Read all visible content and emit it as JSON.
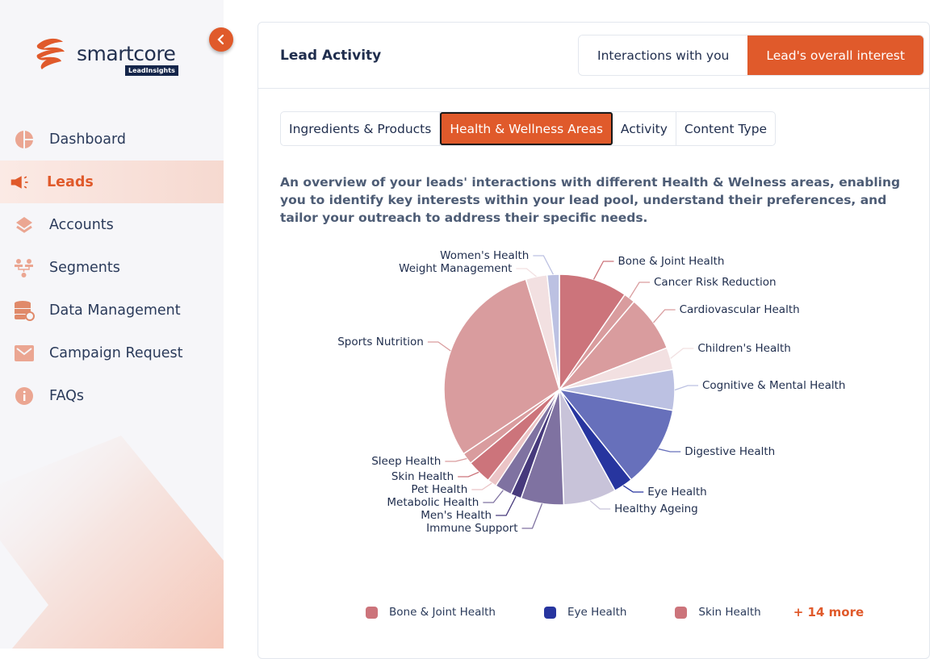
{
  "brand": {
    "name": "smartcore",
    "badge": "LeadInsights",
    "accent": "#e05a2b"
  },
  "sidebar": {
    "items": [
      {
        "label": "Dashboard",
        "icon": "pie-chart-icon",
        "active": false
      },
      {
        "label": "Leads",
        "icon": "megaphone-icon",
        "active": true
      },
      {
        "label": "Accounts",
        "icon": "layers-icon",
        "active": false
      },
      {
        "label": "Segments",
        "icon": "users-icon",
        "active": false
      },
      {
        "label": "Data Management",
        "icon": "database-icon",
        "active": false
      },
      {
        "label": "Campaign Request",
        "icon": "mail-icon",
        "active": false
      },
      {
        "label": "FAQs",
        "icon": "info-icon",
        "active": false
      }
    ]
  },
  "card": {
    "title": "Lead Activity",
    "toggle": [
      {
        "label": "Interactions with you",
        "active": false
      },
      {
        "label": "Lead's overall interest",
        "active": true
      }
    ],
    "tabs": [
      {
        "label": "Ingredients & Products",
        "active": false
      },
      {
        "label": "Health & Wellness Areas",
        "active": true
      },
      {
        "label": "Activity",
        "active": false
      },
      {
        "label": "Content Type",
        "active": false
      }
    ],
    "description": "An overview of your leads' interactions with different Health & Welness areas, enabling you to identify key interests within your lead pool, understand their preferences, and tailor your outreach to address their specific needs."
  },
  "chart_data": {
    "type": "pie",
    "title": "",
    "unit": "percent",
    "slices": [
      {
        "label": "Bone & Joint Health",
        "value": 9.6,
        "color": "#cc747b"
      },
      {
        "label": "Cancer Risk Reduction",
        "value": 1.6,
        "color": "#d99c9e"
      },
      {
        "label": "Cardiovascular Health",
        "value": 7.9,
        "color": "#d99c9e"
      },
      {
        "label": "Children's Health",
        "value": 3.1,
        "color": "#f2e0e1"
      },
      {
        "label": "Cognitive & Mental Health",
        "value": 5.7,
        "color": "#bcc1e2"
      },
      {
        "label": "Digestive Health",
        "value": 11.4,
        "color": "#6770bb"
      },
      {
        "label": "Eye Health",
        "value": 2.7,
        "color": "#27359f"
      },
      {
        "label": "Healthy Ageing",
        "value": 7.4,
        "color": "#c8c3d9"
      },
      {
        "label": "Immune Support",
        "value": 6.0,
        "color": "#7f72a1"
      },
      {
        "label": "Men's Health",
        "value": 1.5,
        "color": "#473a7c"
      },
      {
        "label": "Metabolic Health",
        "value": 2.4,
        "color": "#7f72a1"
      },
      {
        "label": "Pet Health",
        "value": 1.3,
        "color": "#ebc4c6"
      },
      {
        "label": "Skin Health",
        "value": 3.4,
        "color": "#cc747b"
      },
      {
        "label": "Sleep Health",
        "value": 1.6,
        "color": "#d99c9e"
      },
      {
        "label": "Sports Nutrition",
        "value": 29.7,
        "color": "#d99c9e"
      },
      {
        "label": "Weight Management",
        "value": 3.0,
        "color": "#f2e0e1"
      },
      {
        "label": "Women's Health",
        "value": 1.7,
        "color": "#bcc1e2"
      }
    ],
    "legend": {
      "placement": "bottom",
      "items": [
        {
          "label": "Bone & Joint Health",
          "color": "#cc747b"
        },
        {
          "label": "Eye Health",
          "color": "#27359f"
        },
        {
          "label": "Skin Health",
          "color": "#cc747b"
        }
      ],
      "more_label": "+ 14 more"
    }
  }
}
